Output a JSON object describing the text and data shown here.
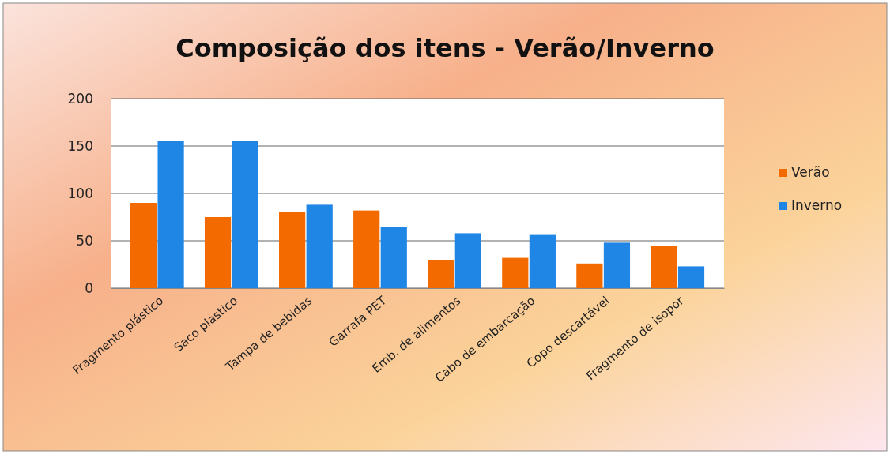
{
  "chart_data": {
    "type": "bar",
    "title": "Composição dos itens - Verão/Inverno",
    "categories": [
      "Fragmento plástico",
      "Saco plástico",
      "Tampa de bebidas",
      "Garrafa PET",
      "Emb. de alimentos",
      "Cabo de embarcação",
      "Copo descartável",
      "Fragmento de isopor"
    ],
    "series": [
      {
        "name": "Verão",
        "color": "#f26a00",
        "values": [
          90,
          75,
          80,
          82,
          30,
          32,
          26,
          45
        ]
      },
      {
        "name": "Inverno",
        "color": "#1f86e6",
        "values": [
          155,
          155,
          88,
          65,
          58,
          57,
          48,
          23
        ]
      }
    ],
    "ylim": [
      0,
      200
    ],
    "yticks": [
      0,
      50,
      100,
      150,
      200
    ],
    "grid": "y",
    "legend": "right"
  }
}
